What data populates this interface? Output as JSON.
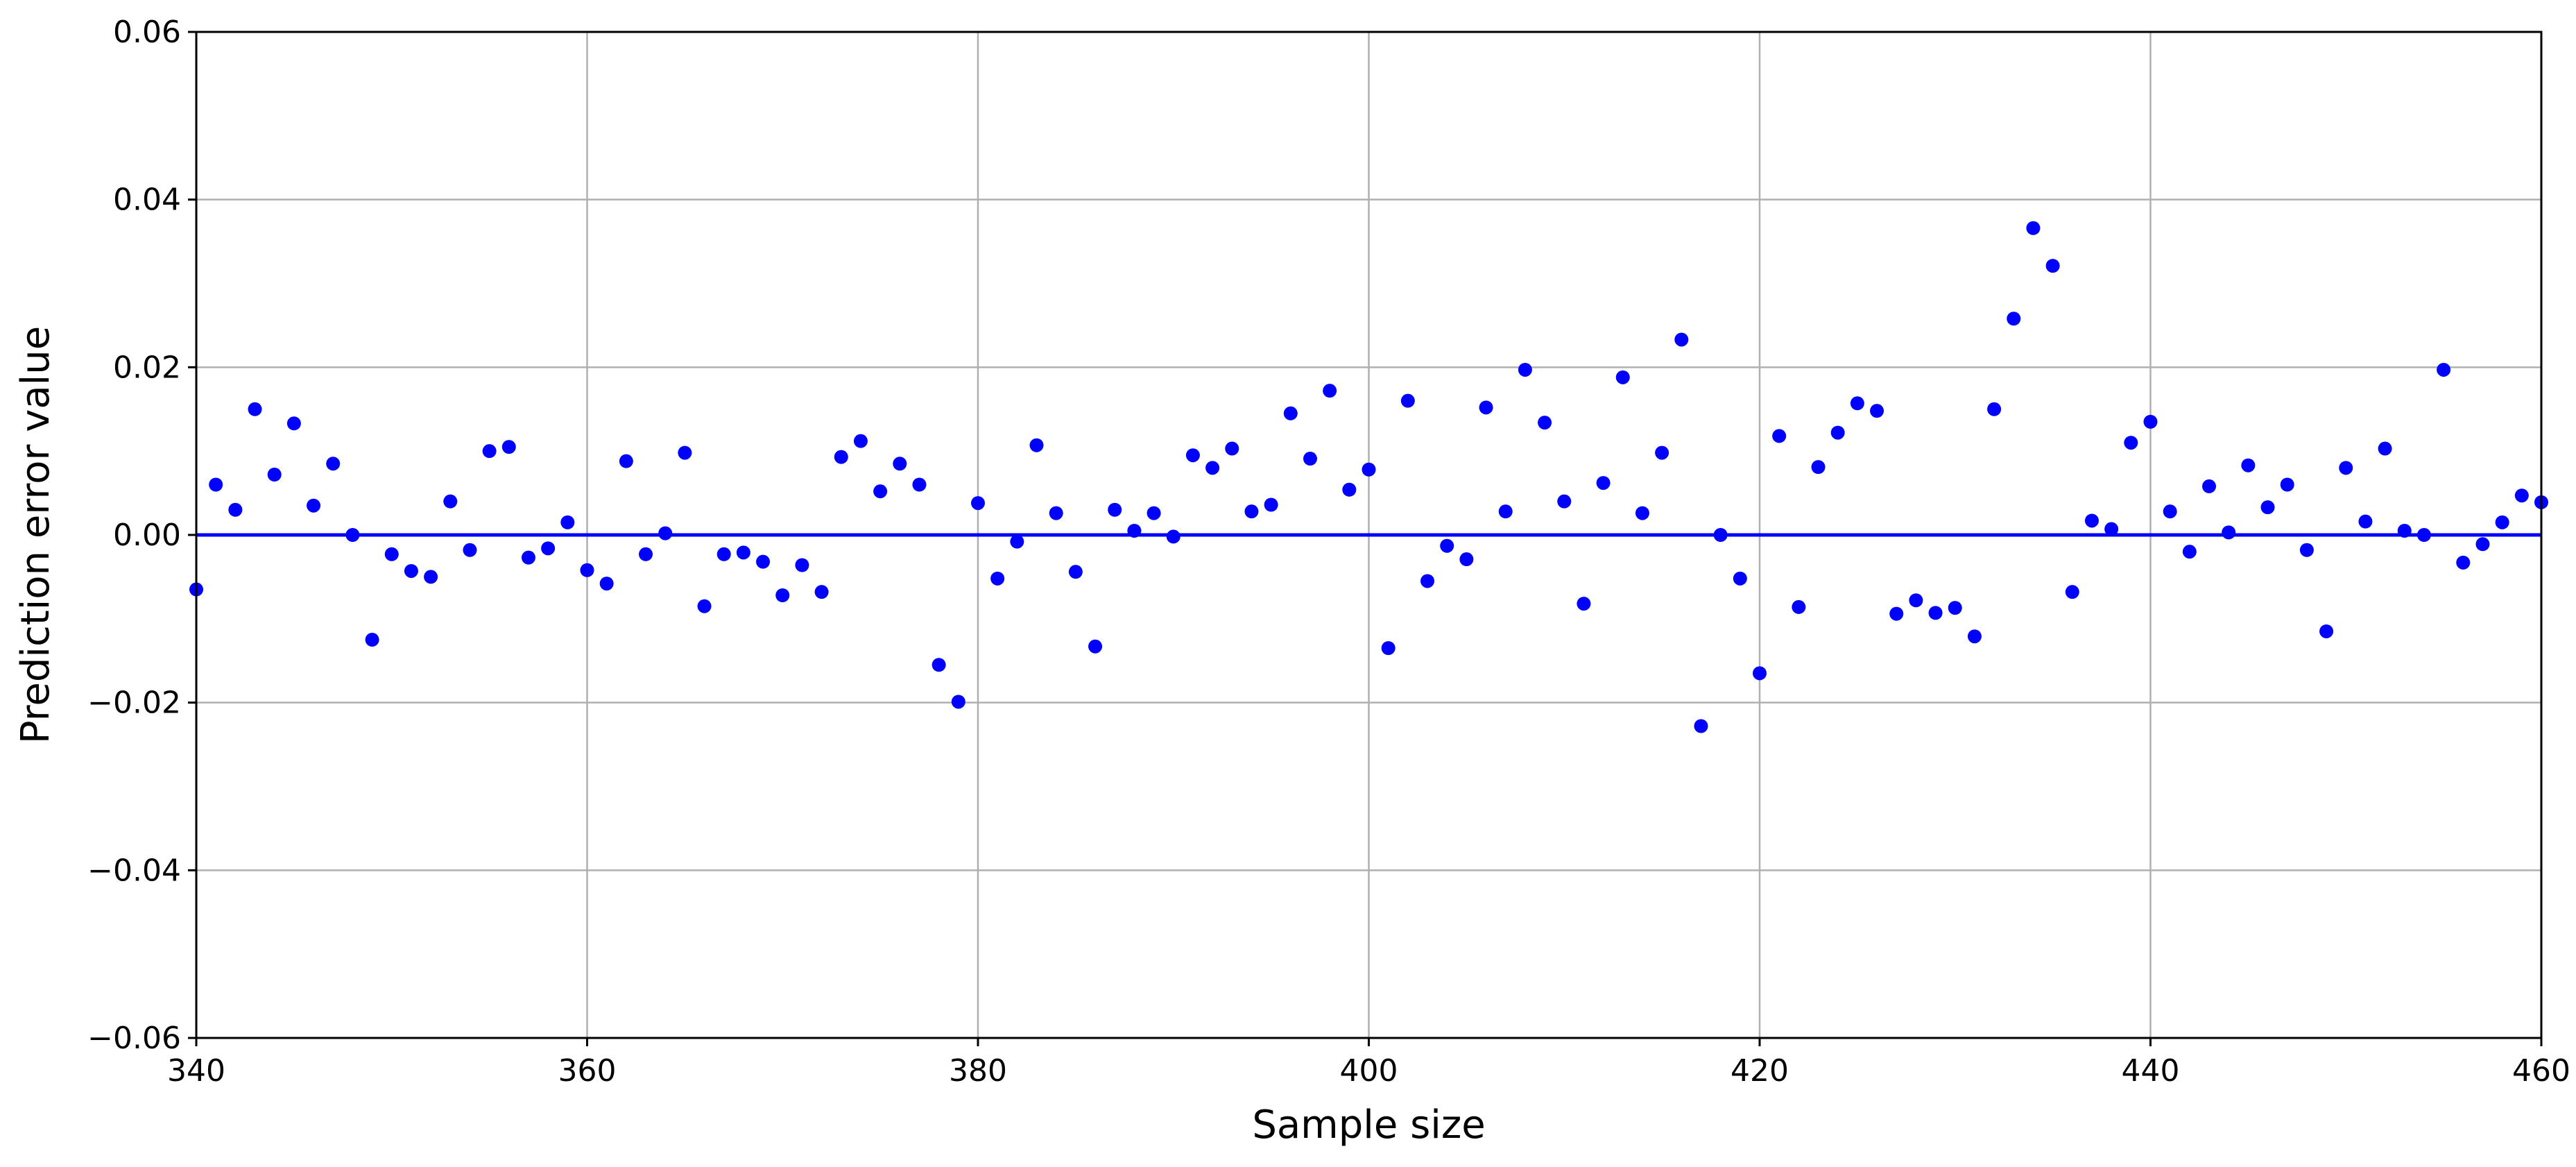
{
  "chart_data": {
    "type": "scatter",
    "title": "",
    "xlabel": "Sample size",
    "ylabel": "Prediction error value",
    "xlim": [
      340,
      460
    ],
    "ylim": [
      -0.06,
      0.06
    ],
    "xticks": [
      340,
      360,
      380,
      400,
      420,
      440,
      460
    ],
    "yticks": [
      -0.06,
      -0.04,
      -0.02,
      0.0,
      0.02,
      0.04,
      0.06
    ],
    "xtick_labels": [
      "340",
      "360",
      "380",
      "400",
      "420",
      "440",
      "460"
    ],
    "ytick_labels": [
      "−0.06",
      "−0.04",
      "−0.02",
      "0.00",
      "0.02",
      "0.04",
      "0.06"
    ],
    "grid": true,
    "reference_line": {
      "y": 0.0,
      "color": "#0000ff"
    },
    "point_color": "#0000ff",
    "x": [
      340,
      341,
      342,
      343,
      344,
      345,
      346,
      347,
      348,
      349,
      350,
      351,
      352,
      353,
      354,
      355,
      356,
      357,
      358,
      359,
      360,
      361,
      362,
      363,
      364,
      365,
      366,
      367,
      368,
      369,
      370,
      371,
      372,
      373,
      374,
      375,
      376,
      377,
      378,
      379,
      380,
      381,
      382,
      383,
      384,
      385,
      386,
      387,
      388,
      389,
      390,
      391,
      392,
      393,
      394,
      395,
      396,
      397,
      398,
      399,
      400,
      401,
      402,
      403,
      404,
      405,
      406,
      407,
      408,
      409,
      410,
      411,
      412,
      413,
      414,
      415,
      416,
      417,
      418,
      419,
      420,
      421,
      422,
      423,
      424,
      425,
      426,
      427,
      428,
      429,
      430,
      431,
      432,
      433,
      434,
      435,
      436,
      437,
      438,
      439,
      440,
      441,
      442,
      443,
      444,
      445,
      446,
      447,
      448,
      449,
      450,
      451,
      452,
      453,
      454,
      455,
      456,
      457,
      458,
      459,
      460
    ],
    "y": [
      -0.0065,
      0.006,
      0.003,
      0.015,
      0.0072,
      0.0133,
      0.0035,
      0.0085,
      0.0,
      -0.0125,
      -0.0023,
      -0.0043,
      -0.005,
      0.004,
      -0.0018,
      0.01,
      0.0105,
      -0.0027,
      -0.0016,
      0.0015,
      -0.0042,
      -0.0058,
      0.0088,
      -0.0023,
      0.0002,
      0.0098,
      -0.0085,
      -0.0023,
      -0.0021,
      -0.0032,
      -0.0072,
      -0.0036,
      -0.0068,
      0.0093,
      0.0112,
      0.0052,
      0.0085,
      0.006,
      -0.0155,
      -0.0199,
      0.0038,
      -0.0052,
      -0.0008,
      0.0107,
      0.0026,
      -0.0044,
      -0.0133,
      0.003,
      0.0005,
      0.0026,
      -0.0002,
      0.0095,
      0.008,
      0.0103,
      0.0028,
      0.0036,
      0.0145,
      0.0091,
      0.0172,
      0.0054,
      0.0078,
      -0.0135,
      0.016,
      -0.0055,
      -0.0013,
      -0.0029,
      0.0152,
      0.0028,
      0.0197,
      0.0134,
      0.004,
      -0.0082,
      0.0062,
      0.0188,
      0.0026,
      0.0098,
      0.0233,
      -0.0228,
      0.0,
      -0.0052,
      -0.0165,
      0.0118,
      -0.0086,
      0.0081,
      0.0122,
      0.0157,
      0.0148,
      -0.0094,
      -0.0078,
      -0.0093,
      -0.0087,
      -0.0121,
      0.015,
      0.0258,
      0.0366,
      0.0321,
      -0.0068,
      0.0017,
      0.0007,
      0.011,
      0.0135,
      0.0028,
      -0.002,
      0.0058,
      0.0003,
      0.0083,
      0.0033,
      0.006,
      -0.0018,
      -0.0115,
      0.008,
      0.0016,
      0.0103,
      0.0005,
      0.0,
      0.0197,
      -0.0033,
      -0.0011,
      0.0015,
      0.0047,
      0.0039
    ]
  }
}
